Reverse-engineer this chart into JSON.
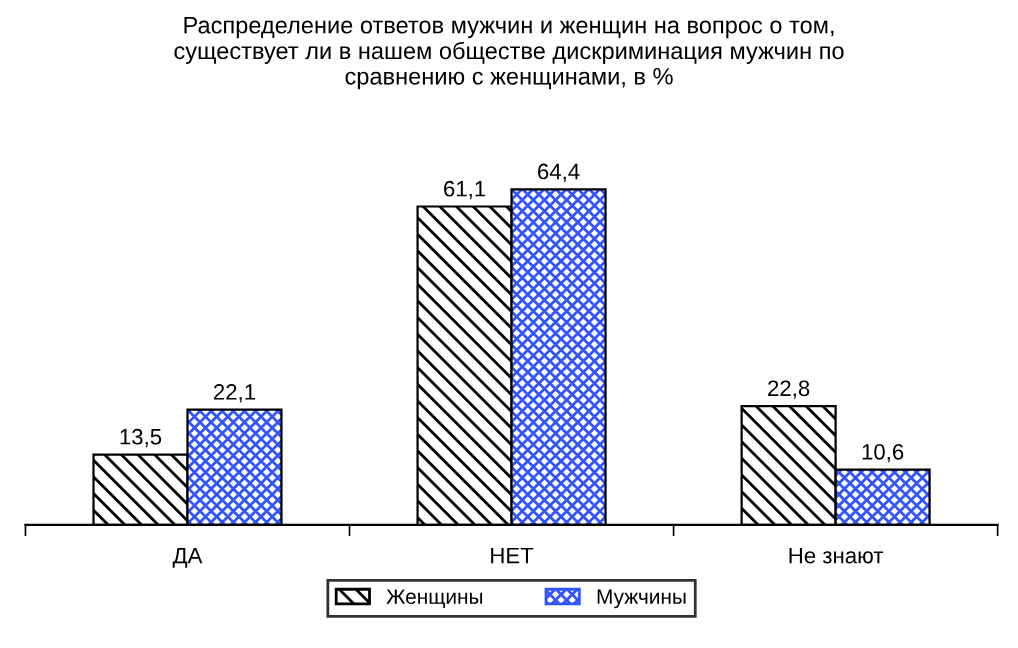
{
  "chart_data": {
    "type": "bar",
    "title": "Распределение ответов мужчин и женщин на вопрос о том,\nсуществует ли в нашем обществе дискриминация мужчин по\nсравнению с женщинами, в %",
    "categories": [
      "ДА",
      "НЕТ",
      "Не знают"
    ],
    "series": [
      {
        "name": "Женщины",
        "color": "#000000",
        "values": [
          13.5,
          61.1,
          22.8
        ],
        "value_labels": [
          "13,5",
          "61,1",
          "22,8"
        ]
      },
      {
        "name": "Мужчины",
        "color": "#3355ff",
        "values": [
          22.1,
          64.4,
          10.6
        ],
        "value_labels": [
          "22,1",
          "64,4",
          "10,6"
        ]
      }
    ],
    "legend": "bottom",
    "grid": false
  }
}
